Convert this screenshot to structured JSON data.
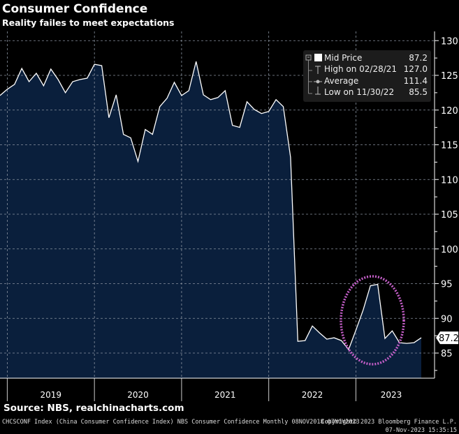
{
  "header": {
    "title": "Consumer Confidence",
    "subtitle": "Reality failes to meet expectations"
  },
  "legend": {
    "items": [
      {
        "label": "Mid Price",
        "value": "87.2",
        "icon": "white-square-icon"
      },
      {
        "label": "High on 02/28/21",
        "value": "127.0",
        "icon": "high-marker-icon"
      },
      {
        "label": "Average",
        "value": "111.4",
        "icon": "average-marker-icon"
      },
      {
        "label": "Low on 11/30/22",
        "value": "85.5",
        "icon": "low-marker-icon"
      }
    ]
  },
  "last_value_tag": "87.2",
  "footer": {
    "source": "Source: NBS, realchinacharts.com",
    "description": "CHCSCONF Index (China Consumer Confidence Index) NBS Consumer Confidence  Monthly 08NOV2018-07NOV2023",
    "copyright": "Copyright© 2023 Bloomberg Finance L.P.",
    "timestamp": "07-Nov-2023 15:35:15"
  },
  "chart_data": {
    "type": "area",
    "title": "Consumer Confidence",
    "subtitle": "Reality failes to meet expectations",
    "x_tick_labels": [
      "2019",
      "2020",
      "2021",
      "2022",
      "2023"
    ],
    "y_tick_labels": [
      "85",
      "90",
      "95",
      "100",
      "105",
      "110",
      "115",
      "120",
      "125",
      "130"
    ],
    "ylim": [
      84,
      131
    ],
    "y_axis_side": "right",
    "grid": true,
    "legend_placement": "top-right",
    "colors": {
      "fill": "#0a1f3c",
      "line": "#ffffff",
      "highlight_ellipse": "#c45ec8",
      "background": "#000000"
    },
    "annotation": "dotted ellipse highlighting early-2023 rebound",
    "series": [
      {
        "name": "Mid Price",
        "x": [
          "2018-11",
          "2018-12",
          "2019-01",
          "2019-02",
          "2019-03",
          "2019-04",
          "2019-05",
          "2019-06",
          "2019-07",
          "2019-08",
          "2019-09",
          "2019-10",
          "2019-11",
          "2019-12",
          "2020-01",
          "2020-02",
          "2020-03",
          "2020-04",
          "2020-05",
          "2020-06",
          "2020-07",
          "2020-08",
          "2020-09",
          "2020-10",
          "2020-11",
          "2020-12",
          "2021-01",
          "2021-02",
          "2021-03",
          "2021-04",
          "2021-05",
          "2021-06",
          "2021-07",
          "2021-08",
          "2021-09",
          "2021-10",
          "2021-11",
          "2021-12",
          "2022-01",
          "2022-02",
          "2022-03",
          "2022-04",
          "2022-05",
          "2022-06",
          "2022-07",
          "2022-08",
          "2022-09",
          "2022-10",
          "2022-11",
          "2022-12",
          "2023-01",
          "2023-02",
          "2023-03",
          "2023-04",
          "2023-05",
          "2023-06",
          "2023-07",
          "2023-08",
          "2023-09"
        ],
        "values": [
          122.1,
          123.0,
          123.7,
          126.0,
          124.1,
          125.3,
          123.5,
          125.9,
          124.4,
          122.5,
          124.1,
          124.4,
          124.6,
          126.6,
          126.4,
          118.9,
          122.2,
          116.5,
          116.0,
          112.6,
          117.2,
          116.5,
          120.5,
          121.7,
          124.0,
          122.1,
          122.8,
          127.0,
          122.2,
          121.5,
          121.8,
          122.8,
          117.8,
          117.5,
          121.2,
          120.1,
          119.5,
          119.8,
          121.5,
          120.5,
          113.2,
          86.7,
          86.8,
          88.9,
          87.9,
          87.0,
          87.2,
          86.8,
          85.5,
          88.3,
          91.2,
          94.7,
          94.9,
          87.1,
          88.2,
          86.5,
          86.4,
          86.5,
          87.2
        ]
      }
    ]
  }
}
